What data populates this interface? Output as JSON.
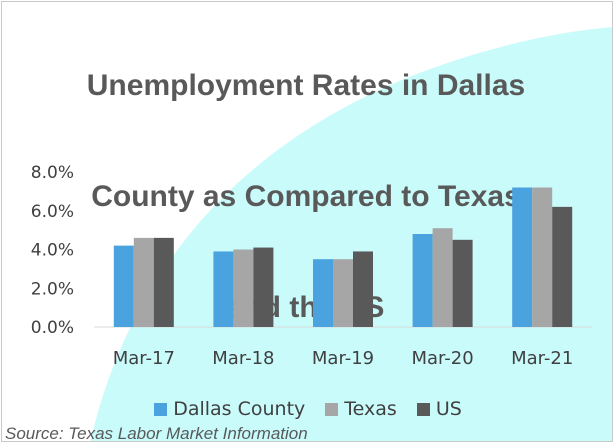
{
  "colors": {
    "dallas": "#4aa3df",
    "texas": "#a6a6a6",
    "us": "#595959",
    "background_shape": "#c9fbfb",
    "axis_text": "#404040",
    "gridline": "#d9d9d9"
  },
  "chart_data": {
    "type": "bar",
    "title": "Unemployment Rates in Dallas County as Compared to Texas and the US",
    "title_lines": [
      "Unemployment Rates in Dallas",
      "County as Compared to Texas",
      "and the US"
    ],
    "categories": [
      "Mar-17",
      "Mar-18",
      "Mar-19",
      "Mar-20",
      "Mar-21"
    ],
    "series": [
      {
        "name": "Dallas County",
        "color": "#4aa3df",
        "values": [
          4.2,
          3.9,
          3.5,
          4.8,
          7.2
        ]
      },
      {
        "name": "Texas",
        "color": "#a6a6a6",
        "values": [
          4.6,
          4.0,
          3.5,
          5.1,
          7.2
        ]
      },
      {
        "name": "US",
        "color": "#595959",
        "values": [
          4.6,
          4.1,
          3.9,
          4.5,
          6.2
        ]
      }
    ],
    "yticks": [
      "8.0%",
      "6.0%",
      "4.0%",
      "2.0%",
      "0.0%"
    ],
    "ylim": [
      0,
      8
    ],
    "xlabel": "",
    "ylabel": "",
    "grid": false,
    "legend_position": "bottom"
  },
  "source": "Source: Texas Labor Market Information"
}
